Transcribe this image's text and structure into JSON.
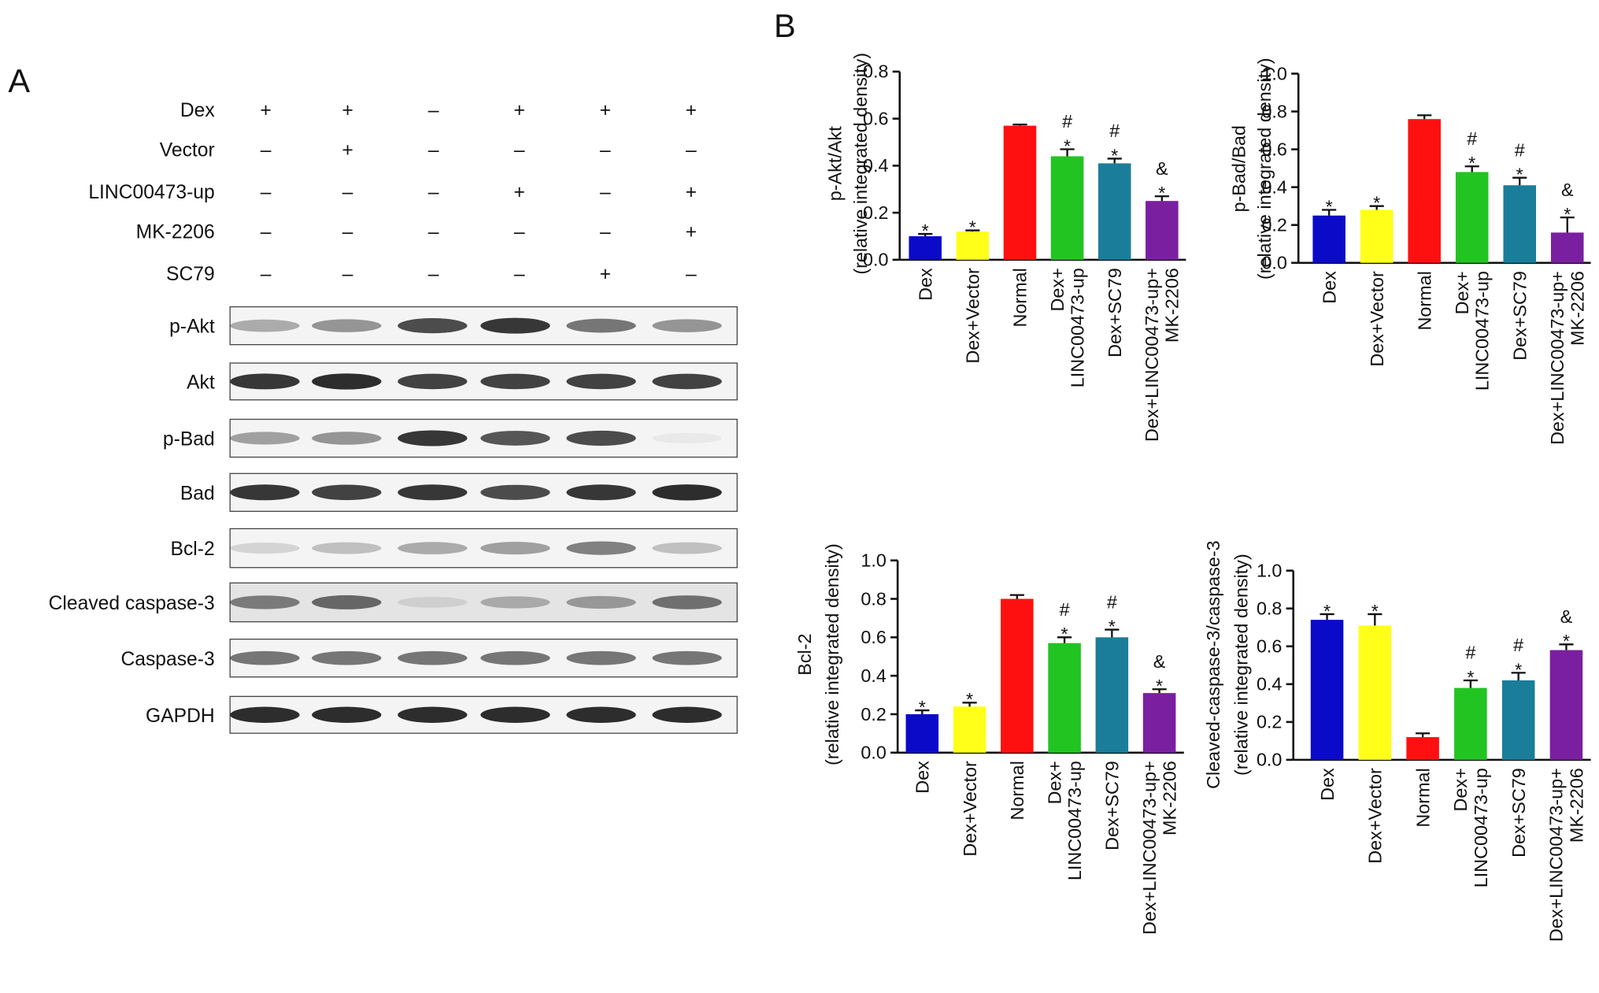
{
  "panels": [
    "A",
    "B"
  ],
  "blot": {
    "treatments": [
      {
        "label": "Dex",
        "signs": [
          "+",
          "+",
          "–",
          "+",
          "+",
          "+"
        ]
      },
      {
        "label": "Vector",
        "signs": [
          "–",
          "+",
          "–",
          "–",
          "–",
          "–"
        ]
      },
      {
        "label": "LINC00473-up",
        "signs": [
          "–",
          "–",
          "–",
          "+",
          "–",
          "+"
        ]
      },
      {
        "label": "MK-2206",
        "signs": [
          "–",
          "–",
          "–",
          "–",
          "–",
          "+"
        ]
      },
      {
        "label": "SC79",
        "signs": [
          "–",
          "–",
          "–",
          "–",
          "+",
          "–"
        ]
      }
    ],
    "bands": [
      "p-Akt",
      "Akt",
      "p-Bad",
      "Bad",
      "Bcl-2",
      "Cleaved caspase-3",
      "Caspase-3",
      "GAPDH"
    ]
  },
  "chart_data": [
    {
      "type": "bar",
      "ylabel": [
        "p-Akt/Akt",
        "(relative integrated density)"
      ],
      "categories": [
        "Dex",
        "Dex+Vector",
        "Normal",
        "Dex+\nLINC00473-up",
        "Dex+SC79",
        "Dex+LINC00473-up+\nMK-2206"
      ],
      "values": [
        0.1,
        0.12,
        0.57,
        0.44,
        0.41,
        0.25
      ],
      "errors": [
        0.01,
        0.005,
        0.005,
        0.03,
        0.02,
        0.02
      ],
      "colors": [
        "#0a0ac8",
        "#ffff1a",
        "#ff1010",
        "#22c422",
        "#1a7d9a",
        "#7a1fa0"
      ],
      "annotations": [
        [
          "*"
        ],
        [
          "*"
        ],
        [],
        [
          "#",
          "*"
        ],
        [
          "#",
          "*"
        ],
        [
          "&",
          "*"
        ]
      ],
      "ylim": [
        0,
        0.8
      ],
      "yticks": [
        {
          "value": 0,
          "label": "0.0"
        },
        0.2,
        0.4,
        0.6,
        0.8
      ]
    },
    {
      "type": "bar",
      "ylabel": [
        "p-Bad/Bad",
        "(relative integrated density)"
      ],
      "categories": [
        "Dex",
        "Dex+Vector",
        "Normal",
        "Dex+\nLINC00473-up",
        "Dex+SC79",
        "Dex+LINC00473-up+\nMK-2206"
      ],
      "values": [
        0.25,
        0.28,
        0.76,
        0.48,
        0.41,
        0.16
      ],
      "errors": [
        0.03,
        0.02,
        0.02,
        0.03,
        0.04,
        0.08
      ],
      "colors": [
        "#0a0ac8",
        "#ffff1a",
        "#ff1010",
        "#22c422",
        "#1a7d9a",
        "#7a1fa0"
      ],
      "annotations": [
        [
          "*"
        ],
        [
          "*"
        ],
        [],
        [
          "#",
          "*"
        ],
        [
          "#",
          "*"
        ],
        [
          "&",
          "*"
        ]
      ],
      "ylim": [
        0,
        1.0
      ],
      "yticks": [
        {
          "value": 0,
          "label": "0.0"
        },
        0.2,
        0.4,
        0.6,
        0.8,
        {
          "value": 1,
          "label": "1.0"
        }
      ]
    },
    {
      "type": "bar",
      "ylabel": [
        "Bcl-2",
        "(relative integrated density)"
      ],
      "categories": [
        "Dex",
        "Dex+Vector",
        "Normal",
        "Dex+\nLINC00473-up",
        "Dex+SC79",
        "Dex+LINC00473-up+\nMK-2206"
      ],
      "values": [
        0.2,
        0.24,
        0.8,
        0.57,
        0.6,
        0.31
      ],
      "errors": [
        0.02,
        0.02,
        0.02,
        0.03,
        0.04,
        0.02
      ],
      "colors": [
        "#0a0ac8",
        "#ffff1a",
        "#ff1010",
        "#22c422",
        "#1a7d9a",
        "#7a1fa0"
      ],
      "annotations": [
        [
          "*"
        ],
        [
          "*"
        ],
        [],
        [
          "#",
          "*"
        ],
        [
          "#",
          "*"
        ],
        [
          "&",
          "*"
        ]
      ],
      "ylim": [
        0,
        1.0
      ],
      "yticks": [
        {
          "value": 0,
          "label": "0.0"
        },
        0.2,
        0.4,
        0.6,
        0.8,
        {
          "value": 1,
          "label": "1.0"
        }
      ]
    },
    {
      "type": "bar",
      "ylabel": [
        "Cleaved-caspase-3/caspase-3",
        "(relative integrated density)"
      ],
      "categories": [
        "Dex",
        "Dex+Vector",
        "Normal",
        "Dex+\nLINC00473-up",
        "Dex+SC79",
        "Dex+LINC00473-up+\nMK-2206"
      ],
      "values": [
        0.74,
        0.71,
        0.12,
        0.38,
        0.42,
        0.58
      ],
      "errors": [
        0.03,
        0.06,
        0.02,
        0.04,
        0.04,
        0.03
      ],
      "colors": [
        "#0a0ac8",
        "#ffff1a",
        "#ff1010",
        "#22c422",
        "#1a7d9a",
        "#7a1fa0"
      ],
      "annotations": [
        [
          "*"
        ],
        [
          "*"
        ],
        [],
        [
          "#",
          "*"
        ],
        [
          "#",
          "*"
        ],
        [
          "&",
          "*"
        ]
      ],
      "ylim": [
        0,
        1.0
      ],
      "yticks": [
        {
          "value": 0,
          "label": "0.0"
        },
        0.2,
        0.4,
        0.6,
        0.8,
        {
          "value": 1,
          "label": "1.0"
        }
      ]
    }
  ]
}
